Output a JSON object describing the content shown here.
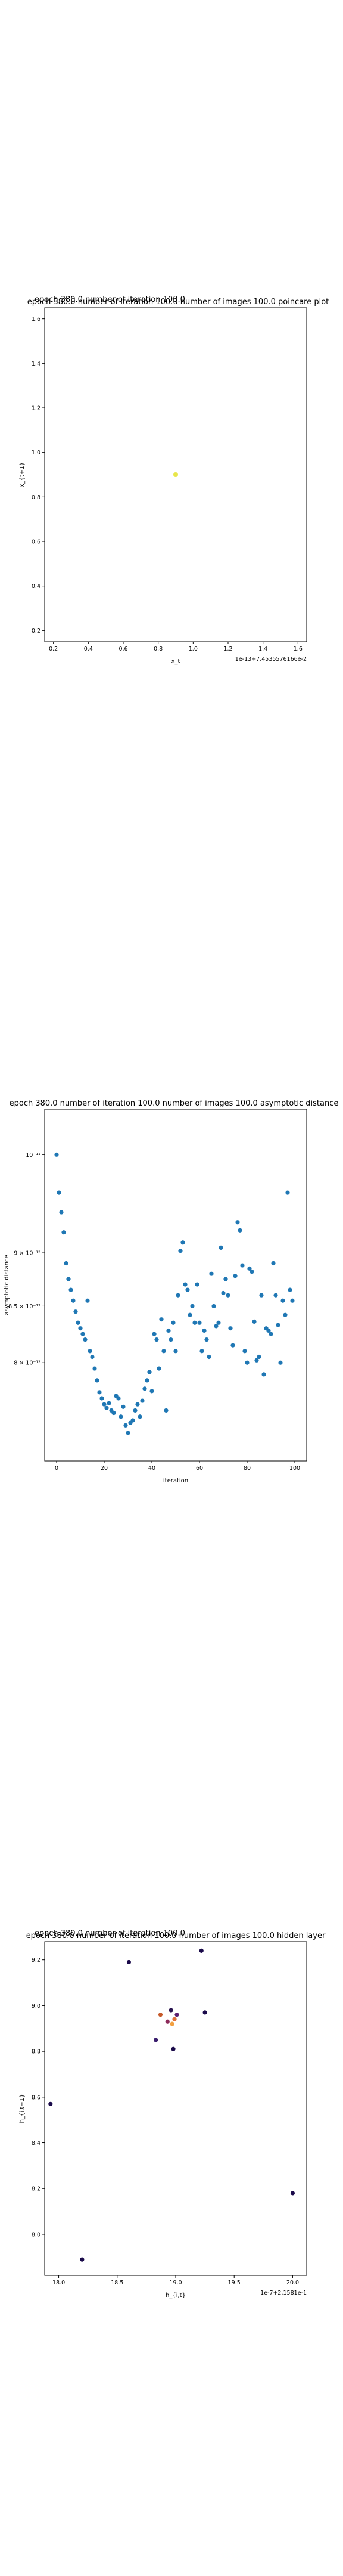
{
  "chart_data": [
    {
      "type": "scatter",
      "title": "epoch 380.0 number of iteration 100.0 number of images 100.0 poincare plot",
      "title_shadow": "epoch 380.0 number of iteration 100.0",
      "xlabel": "x_t",
      "ylabel": "x_{t+1}",
      "x_offset_label": "1e-13+7.4535576166e-2",
      "xlim": [
        0.15,
        1.65
      ],
      "ylim": [
        0.15,
        1.65
      ],
      "xticks": [
        0.2,
        0.4,
        0.6,
        0.8,
        1.0,
        1.2,
        1.4,
        1.6
      ],
      "yticks": [
        0.2,
        0.4,
        0.6,
        0.8,
        1.0,
        1.2,
        1.4,
        1.6
      ],
      "points": [
        {
          "x": 0.9,
          "y": 0.9
        }
      ],
      "point_color": "#e8e64a"
    },
    {
      "type": "scatter",
      "title": "epoch 380.0 number of iteration 100.0  number of images 100.0 asymptotic distance",
      "xlabel": "iteration",
      "ylabel": "asymptotic distance",
      "yscale": "log",
      "xlim": [
        -5,
        105
      ],
      "ylim": [
        7.2e-12,
        1.05e-11
      ],
      "xticks": [
        0,
        20,
        40,
        60,
        80,
        100
      ],
      "yticks": [
        {
          "value": 1e-11,
          "label": "10⁻¹¹"
        },
        {
          "value": 9e-12,
          "label": "9 × 10⁻¹²"
        },
        {
          "value": 8.5e-12,
          "label": "8.5 × 10⁻¹²"
        },
        {
          "value": 8e-12,
          "label": "8 × 10⁻¹²"
        }
      ],
      "point_color": "#1f77b4",
      "x": [
        0,
        1,
        2,
        3,
        4,
        5,
        6,
        7,
        8,
        9,
        10,
        11,
        12,
        13,
        14,
        15,
        16,
        17,
        18,
        19,
        20,
        21,
        22,
        23,
        24,
        25,
        26,
        27,
        28,
        29,
        30,
        31,
        32,
        33,
        34,
        35,
        36,
        37,
        38,
        39,
        40,
        41,
        42,
        43,
        44,
        45,
        46,
        47,
        48,
        49,
        50,
        51,
        52,
        53,
        54,
        55,
        56,
        57,
        58,
        59,
        60,
        61,
        62,
        63,
        64,
        65,
        66,
        67,
        68,
        69,
        70,
        71,
        72,
        73,
        74,
        75,
        76,
        77,
        78,
        79,
        80,
        81,
        82,
        83,
        84,
        85,
        86,
        87,
        88,
        89,
        90,
        91,
        92,
        93,
        94,
        95,
        96,
        97,
        98,
        99
      ],
      "y": [
        1e-11,
        9.6e-12,
        9.4e-12,
        9.2e-12,
        8.9e-12,
        8.75e-12,
        8.65e-12,
        8.55e-12,
        8.45e-12,
        8.35e-12,
        8.3e-12,
        8.25e-12,
        8.2e-12,
        8.55e-12,
        8.1e-12,
        8.05e-12,
        7.95e-12,
        7.85e-12,
        7.75e-12,
        7.7e-12,
        7.65e-12,
        7.62e-12,
        7.66e-12,
        7.6e-12,
        7.58e-12,
        7.72e-12,
        7.7e-12,
        7.55e-12,
        7.63e-12,
        7.48e-12,
        7.42e-12,
        7.5e-12,
        7.52e-12,
        7.6e-12,
        7.65e-12,
        7.55e-12,
        7.68e-12,
        7.78e-12,
        7.85e-12,
        7.92e-12,
        7.76e-12,
        8.25e-12,
        8.2e-12,
        7.95e-12,
        8.38e-12,
        8.1e-12,
        7.6e-12,
        8.28e-12,
        8.2e-12,
        8.35e-12,
        8.1e-12,
        8.6e-12,
        9.02e-12,
        9.1e-12,
        8.7e-12,
        8.65e-12,
        8.42e-12,
        8.5e-12,
        8.35e-12,
        8.7e-12,
        8.35e-12,
        8.1e-12,
        8.28e-12,
        8.2e-12,
        8.05e-12,
        8.8e-12,
        8.5e-12,
        8.32e-12,
        8.35e-12,
        9.05e-12,
        8.62e-12,
        8.75e-12,
        8.6e-12,
        8.3e-12,
        8.15e-12,
        8.78e-12,
        9.3e-12,
        9.22e-12,
        8.88e-12,
        8.1e-12,
        8e-12,
        8.85e-12,
        8.82e-12,
        8.36e-12,
        8.02e-12,
        8.05e-12,
        8.6e-12,
        7.9e-12,
        8.3e-12,
        8.28e-12,
        8.25e-12,
        8.9e-12,
        8.6e-12,
        8.33e-12,
        8e-12,
        8.55e-12,
        8.42e-12,
        9.6e-12,
        8.65e-12,
        8.55e-12
      ]
    },
    {
      "type": "scatter",
      "title": "epoch 380.0 number of iteration 100.0  number of images 100.0 hidden layer",
      "title_shadow": "epoch 380.0 number of iteration 100.0",
      "xlabel": "h_{i,t}",
      "ylabel": "h_{i,t+1}",
      "x_offset_label": "1e-7+2.1581e-1",
      "xlim": [
        17.88,
        20.12
      ],
      "ylim": [
        7.82,
        9.28
      ],
      "xticks": [
        18.0,
        18.5,
        19.0,
        19.5,
        20.0
      ],
      "yticks": [
        8.0,
        8.2,
        8.4,
        8.6,
        8.8,
        9.0,
        9.2
      ],
      "points": [
        {
          "x": 17.93,
          "y": 8.57,
          "color": "#1a0a4a"
        },
        {
          "x": 18.2,
          "y": 7.89,
          "color": "#1a0a4a"
        },
        {
          "x": 18.6,
          "y": 9.19,
          "color": "#1a0a4a"
        },
        {
          "x": 18.83,
          "y": 8.85,
          "color": "#3b1f6e"
        },
        {
          "x": 18.87,
          "y": 8.96,
          "color": "#c65a2a"
        },
        {
          "x": 18.93,
          "y": 8.93,
          "color": "#8c2a5a"
        },
        {
          "x": 18.96,
          "y": 8.98,
          "color": "#2a1550"
        },
        {
          "x": 18.97,
          "y": 8.92,
          "color": "#f2a040"
        },
        {
          "x": 18.99,
          "y": 8.94,
          "color": "#e0703a"
        },
        {
          "x": 19.01,
          "y": 8.96,
          "color": "#5a1f70"
        },
        {
          "x": 18.98,
          "y": 8.81,
          "color": "#1a0a4a"
        },
        {
          "x": 19.22,
          "y": 9.24,
          "color": "#1a0a4a"
        },
        {
          "x": 19.25,
          "y": 8.97,
          "color": "#1a0a4a"
        },
        {
          "x": 20.0,
          "y": 8.18,
          "color": "#1a0a4a"
        }
      ]
    }
  ]
}
